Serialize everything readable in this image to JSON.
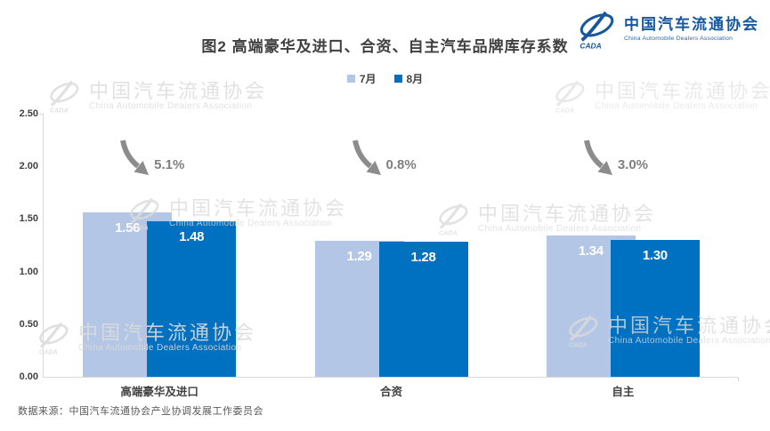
{
  "logo": {
    "cn": "中国汽车流通协会",
    "en": "China Automobile Dealers Association",
    "cada": "CADA",
    "color": "#17579e"
  },
  "title": "图2  高端豪华及进口、合资、自主汽车品牌库存系数",
  "legend": [
    {
      "label": "7月",
      "color": "#b3c6e5"
    },
    {
      "label": "8月",
      "color": "#0070c0"
    }
  ],
  "watermark": {
    "cn": "中国汽车流通协会",
    "en": "China Automobile Dealers Association",
    "cada": "CADA"
  },
  "source": "数据来源：中国汽车流通协会产业协调发展工作委员会",
  "chart_data": {
    "type": "bar",
    "categories": [
      "高端豪华及进口",
      "合资",
      "自主"
    ],
    "series": [
      {
        "name": "7月",
        "color": "#b3c6e5",
        "values": [
          1.56,
          1.29,
          1.34
        ]
      },
      {
        "name": "8月",
        "color": "#0070c0",
        "values": [
          1.48,
          1.28,
          1.3
        ]
      }
    ],
    "value_labels": [
      [
        "1.56",
        "1.29",
        "1.34"
      ],
      [
        "1.48",
        "1.28",
        "1.30"
      ]
    ],
    "change_labels": [
      "5.1%",
      "0.8%",
      "3.0%"
    ],
    "change_direction": "down",
    "ylim": [
      0,
      2.5
    ],
    "yticks": [
      "0.00",
      "0.50",
      "1.00",
      "1.50",
      "2.00",
      "2.50"
    ],
    "grid": false,
    "legend_position": "top-center",
    "arrow_color": "#8c8c8c"
  }
}
